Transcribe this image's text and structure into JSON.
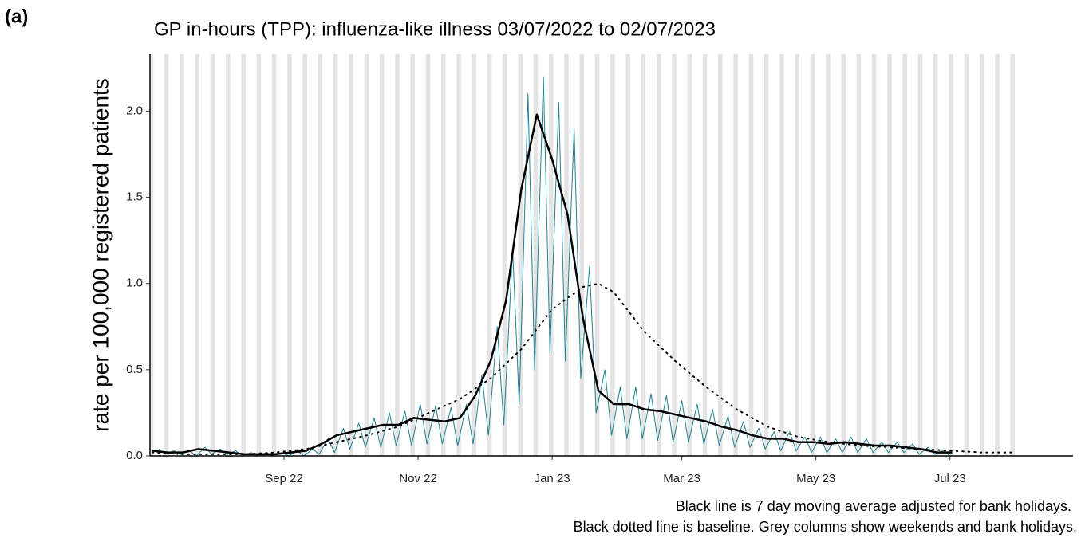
{
  "chart_data": {
    "type": "line",
    "panel_label": "(a)",
    "title": "GP in-hours (TPP): influenza-like illness 03/07/2022 to 02/07/2023",
    "y_label": "rate per 100,000 registered patients",
    "notes": [
      "Black line is 7 day moving average adjusted for bank holidays.",
      "Black dotted line is baseline. Grey columns show weekends and bank holidays."
    ],
    "xlim": [
      "2022-07-02",
      "2023-08-26"
    ],
    "ylim": [
      0,
      2.33
    ],
    "xticks": [
      {
        "value": "2022-09-01",
        "label": "Sep 22"
      },
      {
        "value": "2022-11-01",
        "label": "Nov 22"
      },
      {
        "value": "2023-01-01",
        "label": "Jan 23"
      },
      {
        "value": "2023-03-01",
        "label": "Mar 23"
      },
      {
        "value": "2023-05-01",
        "label": "May 23"
      },
      {
        "value": "2023-07-01",
        "label": "Jul 23"
      }
    ],
    "yticks": [
      {
        "value": 0,
        "label": "0.0"
      },
      0.5,
      {
        "value": 1,
        "label": "1.0"
      },
      1.5,
      {
        "value": 2,
        "label": "2.0"
      }
    ],
    "weekend_shading": true,
    "grid": false,
    "series": [
      {
        "color": "#1f7f92",
        "line_style": "solid",
        "width": 1,
        "x": [
          "2022-07-06",
          "2022-07-09",
          "2022-07-13",
          "2022-07-16",
          "2022-07-20",
          "2022-07-23",
          "2022-07-27",
          "2022-07-30",
          "2022-08-03",
          "2022-08-06",
          "2022-08-10",
          "2022-08-13",
          "2022-08-17",
          "2022-08-20",
          "2022-08-24",
          "2022-08-27",
          "2022-08-31",
          "2022-09-03",
          "2022-09-07",
          "2022-09-10",
          "2022-09-14",
          "2022-09-17",
          "2022-09-21",
          "2022-09-24",
          "2022-09-28",
          "2022-10-01",
          "2022-10-05",
          "2022-10-08",
          "2022-10-12",
          "2022-10-15",
          "2022-10-19",
          "2022-10-22",
          "2022-10-26",
          "2022-10-29",
          "2022-11-02",
          "2022-11-05",
          "2022-11-09",
          "2022-11-12",
          "2022-11-16",
          "2022-11-19",
          "2022-11-23",
          "2022-11-26",
          "2022-11-30",
          "2022-12-03",
          "2022-12-07",
          "2022-12-10",
          "2022-12-14",
          "2022-12-17",
          "2022-12-21",
          "2022-12-24",
          "2022-12-28",
          "2022-12-31",
          "2023-01-04",
          "2023-01-07",
          "2023-01-11",
          "2023-01-14",
          "2023-01-18",
          "2023-01-21",
          "2023-01-25",
          "2023-01-28",
          "2023-02-01",
          "2023-02-04",
          "2023-02-08",
          "2023-02-11",
          "2023-02-15",
          "2023-02-18",
          "2023-02-22",
          "2023-02-25",
          "2023-03-01",
          "2023-03-04",
          "2023-03-08",
          "2023-03-11",
          "2023-03-15",
          "2023-03-18",
          "2023-03-22",
          "2023-03-25",
          "2023-03-29",
          "2023-04-01",
          "2023-04-05",
          "2023-04-08",
          "2023-04-12",
          "2023-04-15",
          "2023-04-19",
          "2023-04-22",
          "2023-04-26",
          "2023-04-29",
          "2023-05-03",
          "2023-05-06",
          "2023-05-10",
          "2023-05-13",
          "2023-05-17",
          "2023-05-20",
          "2023-05-24",
          "2023-05-27",
          "2023-05-31",
          "2023-06-03",
          "2023-06-07",
          "2023-06-10",
          "2023-06-14",
          "2023-06-17",
          "2023-06-21",
          "2023-06-24",
          "2023-06-28",
          "2023-07-01"
        ],
        "values": [
          0.04,
          0.01,
          0.03,
          0.01,
          0.03,
          0,
          0.05,
          0.01,
          0.04,
          0.01,
          0.03,
          0,
          0.02,
          0,
          0.02,
          0,
          0.02,
          0,
          0.03,
          0,
          0.04,
          0.01,
          0.1,
          0.02,
          0.16,
          0.04,
          0.19,
          0.05,
          0.22,
          0.05,
          0.25,
          0.06,
          0.26,
          0.06,
          0.3,
          0.07,
          0.29,
          0.07,
          0.28,
          0.06,
          0.3,
          0.07,
          0.47,
          0.12,
          0.75,
          0.18,
          1.2,
          0.3,
          2.1,
          0.5,
          2.2,
          0.6,
          2.05,
          0.55,
          1.9,
          0.45,
          1.1,
          0.25,
          0.5,
          0.12,
          0.4,
          0.1,
          0.4,
          0.1,
          0.36,
          0.09,
          0.35,
          0.08,
          0.32,
          0.08,
          0.3,
          0.07,
          0.27,
          0.06,
          0.23,
          0.05,
          0.2,
          0.05,
          0.16,
          0.04,
          0.14,
          0.03,
          0.14,
          0.03,
          0.11,
          0.02,
          0.11,
          0.02,
          0.1,
          0.02,
          0.11,
          0.02,
          0.1,
          0.02,
          0.08,
          0.02,
          0.08,
          0.02,
          0.07,
          0.01,
          0.05,
          0.01,
          0.03,
          0
        ]
      },
      {
        "color": "#000000",
        "line_style": "solid",
        "width": 2.5,
        "x": [
          "2022-07-03",
          "2022-07-10",
          "2022-07-17",
          "2022-07-24",
          "2022-07-31",
          "2022-08-07",
          "2022-08-14",
          "2022-08-21",
          "2022-08-28",
          "2022-09-04",
          "2022-09-11",
          "2022-09-18",
          "2022-09-25",
          "2022-10-02",
          "2022-10-09",
          "2022-10-16",
          "2022-10-23",
          "2022-10-30",
          "2022-11-06",
          "2022-11-13",
          "2022-11-20",
          "2022-11-27",
          "2022-12-04",
          "2022-12-11",
          "2022-12-18",
          "2022-12-25",
          "2023-01-01",
          "2023-01-08",
          "2023-01-15",
          "2023-01-22",
          "2023-01-29",
          "2023-02-05",
          "2023-02-12",
          "2023-02-19",
          "2023-02-26",
          "2023-03-05",
          "2023-03-12",
          "2023-03-19",
          "2023-03-26",
          "2023-04-02",
          "2023-04-09",
          "2023-04-16",
          "2023-04-23",
          "2023-04-30",
          "2023-05-07",
          "2023-05-14",
          "2023-05-21",
          "2023-05-28",
          "2023-06-04",
          "2023-06-11",
          "2023-06-18",
          "2023-06-25",
          "2023-07-02"
        ],
        "values": [
          0.03,
          0.02,
          0.02,
          0.04,
          0.03,
          0.02,
          0.01,
          0.01,
          0.01,
          0.02,
          0.03,
          0.07,
          0.12,
          0.14,
          0.16,
          0.18,
          0.18,
          0.22,
          0.21,
          0.2,
          0.22,
          0.35,
          0.55,
          0.9,
          1.55,
          1.98,
          1.72,
          1.4,
          0.8,
          0.38,
          0.3,
          0.3,
          0.27,
          0.26,
          0.24,
          0.22,
          0.2,
          0.17,
          0.15,
          0.12,
          0.1,
          0.1,
          0.08,
          0.08,
          0.07,
          0.08,
          0.07,
          0.06,
          0.06,
          0.05,
          0.04,
          0.02,
          0.02
        ]
      },
      {
        "color": "#000000",
        "line_style": "dotted",
        "width": 2,
        "x": [
          "2022-07-03",
          "2022-07-17",
          "2022-07-31",
          "2022-08-14",
          "2022-08-28",
          "2022-09-11",
          "2022-09-25",
          "2022-10-09",
          "2022-10-23",
          "2022-11-06",
          "2022-11-20",
          "2022-12-04",
          "2022-12-18",
          "2023-01-01",
          "2023-01-15",
          "2023-01-22",
          "2023-01-29",
          "2023-02-12",
          "2023-02-26",
          "2023-03-12",
          "2023-03-26",
          "2023-04-09",
          "2023-04-23",
          "2023-05-07",
          "2023-05-21",
          "2023-06-04",
          "2023-06-18",
          "2023-07-02",
          "2023-07-16",
          "2023-07-30"
        ],
        "values": [
          0.02,
          0.01,
          0.01,
          0.01,
          0.02,
          0.04,
          0.08,
          0.12,
          0.17,
          0.25,
          0.33,
          0.45,
          0.62,
          0.85,
          0.98,
          1.0,
          0.95,
          0.72,
          0.55,
          0.4,
          0.27,
          0.17,
          0.11,
          0.08,
          0.06,
          0.05,
          0.04,
          0.03,
          0.02,
          0.02
        ]
      }
    ]
  }
}
